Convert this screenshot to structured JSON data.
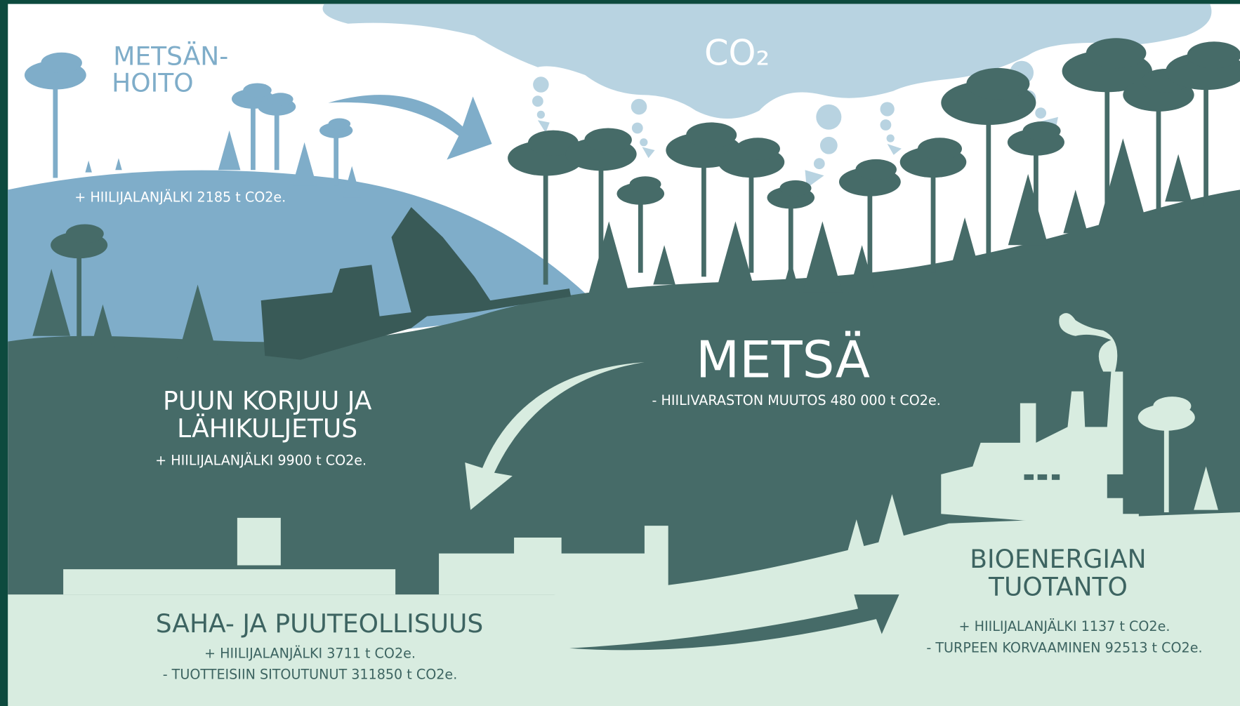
{
  "cloud": {
    "label": "CO₂"
  },
  "forest_management": {
    "title_lines": [
      "METSÄN-",
      "HOITO"
    ],
    "lines": [
      "+ HIILIJALANJÄLKI 2185 t CO2e."
    ]
  },
  "harvesting": {
    "title_lines": [
      "PUUN KORJUU JA",
      "LÄHIKULJETUS"
    ],
    "lines": [
      "+ HIILIJALANJÄLKI 9900 t CO2e."
    ]
  },
  "forest": {
    "title_lines": [
      "METSÄ"
    ],
    "lines": [
      "- HIILIVARASTON MUUTOS 480 000 t CO2e."
    ]
  },
  "sawmill": {
    "title_lines": [
      "SAHA- JA PUUTEOLLISUUS"
    ],
    "lines": [
      "+ HIILIJALANJÄLKI 3711 t CO2e.",
      "- TUOTTEISIIN SITOUTUNUT 311850 t CO2e."
    ]
  },
  "bioenergy": {
    "title_lines": [
      "BIOENERGIAN",
      "TUOTANTO"
    ],
    "lines": [
      "+ HIILIJALANJÄLKI 1137 t CO2e.",
      "- TURPEEN KORVAAMINEN 92513 t CO2e."
    ]
  }
}
